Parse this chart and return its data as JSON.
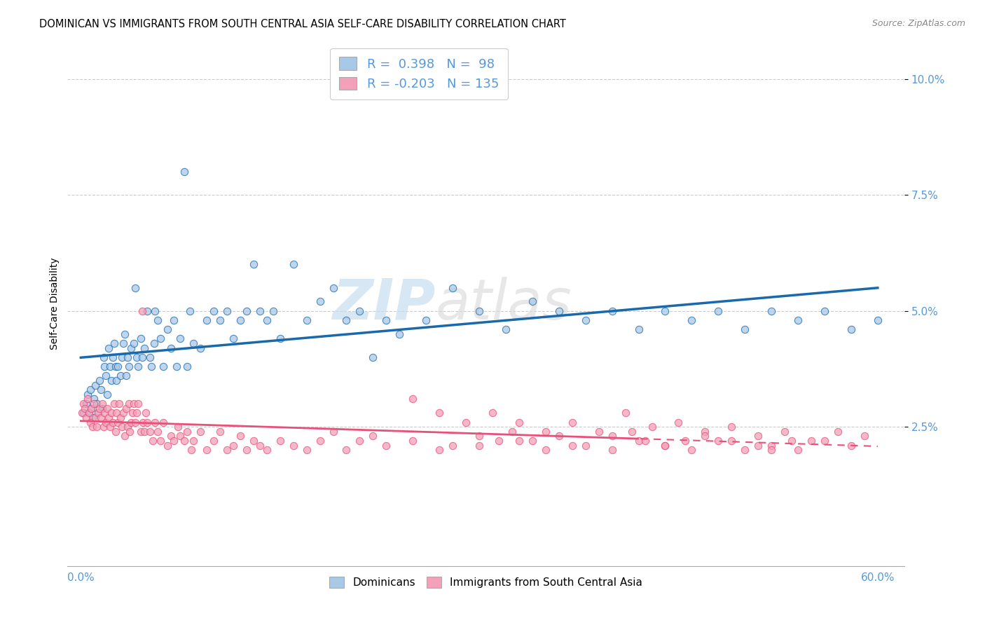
{
  "title": "DOMINICAN VS IMMIGRANTS FROM SOUTH CENTRAL ASIA SELF-CARE DISABILITY CORRELATION CHART",
  "source": "Source: ZipAtlas.com",
  "ylabel": "Self-Care Disability",
  "xlim": [
    -0.01,
    0.62
  ],
  "ylim": [
    -0.005,
    0.108
  ],
  "blue_color": "#a8c8e8",
  "pink_color": "#f4a0b8",
  "blue_line_color": "#1a6aab",
  "pink_line_color": "#e8507a",
  "watermark_zip": "ZIP",
  "watermark_atlas": "atlas",
  "legend_r1_label": "R =  0.398   N =  98",
  "legend_r2_label": "R = -0.203   N = 135",
  "bottom_label1": "Dominicans",
  "bottom_label2": "Immigrants from South Central Asia",
  "ytick_vals": [
    0.025,
    0.05,
    0.075,
    0.1
  ],
  "ytick_labels": [
    "2.5%",
    "5.0%",
    "7.5%",
    "10.0%"
  ],
  "xtick_vals": [
    0.0,
    0.1,
    0.2,
    0.3,
    0.4,
    0.5,
    0.6
  ],
  "xtick_labels": [
    "0.0%",
    "",
    "",
    "",
    "",
    "",
    "60.0%"
  ],
  "dom_x": [
    0.002,
    0.004,
    0.005,
    0.006,
    0.007,
    0.008,
    0.009,
    0.01,
    0.011,
    0.012,
    0.013,
    0.014,
    0.015,
    0.016,
    0.017,
    0.018,
    0.019,
    0.02,
    0.021,
    0.022,
    0.023,
    0.024,
    0.025,
    0.026,
    0.027,
    0.028,
    0.03,
    0.031,
    0.032,
    0.033,
    0.034,
    0.035,
    0.036,
    0.038,
    0.04,
    0.041,
    0.042,
    0.043,
    0.045,
    0.046,
    0.048,
    0.05,
    0.052,
    0.053,
    0.055,
    0.056,
    0.058,
    0.06,
    0.062,
    0.065,
    0.068,
    0.07,
    0.072,
    0.075,
    0.078,
    0.08,
    0.082,
    0.085,
    0.09,
    0.095,
    0.1,
    0.105,
    0.11,
    0.115,
    0.12,
    0.125,
    0.13,
    0.135,
    0.14,
    0.145,
    0.15,
    0.16,
    0.17,
    0.18,
    0.19,
    0.2,
    0.21,
    0.22,
    0.23,
    0.24,
    0.26,
    0.28,
    0.3,
    0.32,
    0.34,
    0.36,
    0.38,
    0.4,
    0.42,
    0.44,
    0.46,
    0.48,
    0.5,
    0.52,
    0.54,
    0.56,
    0.58,
    0.6
  ],
  "dom_y": [
    0.028,
    0.03,
    0.032,
    0.028,
    0.033,
    0.029,
    0.027,
    0.031,
    0.034,
    0.03,
    0.028,
    0.035,
    0.033,
    0.029,
    0.04,
    0.038,
    0.036,
    0.032,
    0.042,
    0.038,
    0.035,
    0.04,
    0.043,
    0.038,
    0.035,
    0.038,
    0.036,
    0.04,
    0.043,
    0.045,
    0.036,
    0.04,
    0.038,
    0.042,
    0.043,
    0.055,
    0.04,
    0.038,
    0.044,
    0.04,
    0.042,
    0.05,
    0.04,
    0.038,
    0.043,
    0.05,
    0.048,
    0.044,
    0.038,
    0.046,
    0.042,
    0.048,
    0.038,
    0.044,
    0.08,
    0.038,
    0.05,
    0.043,
    0.042,
    0.048,
    0.05,
    0.048,
    0.05,
    0.044,
    0.048,
    0.05,
    0.06,
    0.05,
    0.048,
    0.05,
    0.044,
    0.06,
    0.048,
    0.052,
    0.055,
    0.048,
    0.05,
    0.04,
    0.048,
    0.045,
    0.048,
    0.055,
    0.05,
    0.046,
    0.052,
    0.05,
    0.048,
    0.05,
    0.046,
    0.05,
    0.048,
    0.05,
    0.046,
    0.05,
    0.048,
    0.05,
    0.046,
    0.048
  ],
  "imm_x": [
    0.001,
    0.002,
    0.003,
    0.004,
    0.005,
    0.006,
    0.007,
    0.008,
    0.009,
    0.01,
    0.011,
    0.012,
    0.013,
    0.014,
    0.015,
    0.016,
    0.017,
    0.018,
    0.019,
    0.02,
    0.021,
    0.022,
    0.023,
    0.024,
    0.025,
    0.026,
    0.027,
    0.028,
    0.029,
    0.03,
    0.031,
    0.032,
    0.033,
    0.034,
    0.035,
    0.036,
    0.037,
    0.038,
    0.039,
    0.04,
    0.041,
    0.042,
    0.043,
    0.045,
    0.046,
    0.047,
    0.048,
    0.049,
    0.05,
    0.052,
    0.054,
    0.056,
    0.058,
    0.06,
    0.062,
    0.065,
    0.068,
    0.07,
    0.073,
    0.075,
    0.078,
    0.08,
    0.083,
    0.085,
    0.09,
    0.095,
    0.1,
    0.105,
    0.11,
    0.115,
    0.12,
    0.125,
    0.13,
    0.135,
    0.14,
    0.15,
    0.16,
    0.17,
    0.18,
    0.19,
    0.2,
    0.21,
    0.22,
    0.23,
    0.25,
    0.27,
    0.3,
    0.33,
    0.35,
    0.37,
    0.4,
    0.42,
    0.44,
    0.46,
    0.48,
    0.5,
    0.52,
    0.54,
    0.56,
    0.58,
    0.25,
    0.27,
    0.29,
    0.31,
    0.33,
    0.35,
    0.37,
    0.39,
    0.41,
    0.43,
    0.45,
    0.47,
    0.49,
    0.51,
    0.53,
    0.55,
    0.57,
    0.59,
    0.28,
    0.3,
    0.315,
    0.325,
    0.34,
    0.36,
    0.38,
    0.4,
    0.415,
    0.425,
    0.44,
    0.455,
    0.47,
    0.49,
    0.51,
    0.52,
    0.535
  ],
  "imm_y": [
    0.028,
    0.03,
    0.029,
    0.027,
    0.031,
    0.028,
    0.026,
    0.029,
    0.025,
    0.03,
    0.027,
    0.025,
    0.028,
    0.029,
    0.027,
    0.03,
    0.025,
    0.028,
    0.026,
    0.029,
    0.027,
    0.025,
    0.028,
    0.026,
    0.03,
    0.024,
    0.028,
    0.026,
    0.03,
    0.027,
    0.025,
    0.028,
    0.023,
    0.029,
    0.025,
    0.03,
    0.024,
    0.026,
    0.028,
    0.03,
    0.026,
    0.028,
    0.03,
    0.024,
    0.05,
    0.026,
    0.024,
    0.028,
    0.026,
    0.024,
    0.022,
    0.026,
    0.024,
    0.022,
    0.026,
    0.021,
    0.023,
    0.022,
    0.025,
    0.023,
    0.022,
    0.024,
    0.02,
    0.022,
    0.024,
    0.02,
    0.022,
    0.024,
    0.02,
    0.021,
    0.023,
    0.02,
    0.022,
    0.021,
    0.02,
    0.022,
    0.021,
    0.02,
    0.022,
    0.024,
    0.02,
    0.022,
    0.023,
    0.021,
    0.022,
    0.02,
    0.021,
    0.022,
    0.02,
    0.021,
    0.02,
    0.022,
    0.021,
    0.02,
    0.022,
    0.02,
    0.021,
    0.02,
    0.022,
    0.021,
    0.031,
    0.028,
    0.026,
    0.028,
    0.026,
    0.024,
    0.026,
    0.024,
    0.028,
    0.025,
    0.026,
    0.024,
    0.025,
    0.023,
    0.024,
    0.022,
    0.024,
    0.023,
    0.021,
    0.023,
    0.022,
    0.024,
    0.022,
    0.023,
    0.021,
    0.023,
    0.024,
    0.022,
    0.021,
    0.022,
    0.023,
    0.022,
    0.021,
    0.02,
    0.022
  ]
}
